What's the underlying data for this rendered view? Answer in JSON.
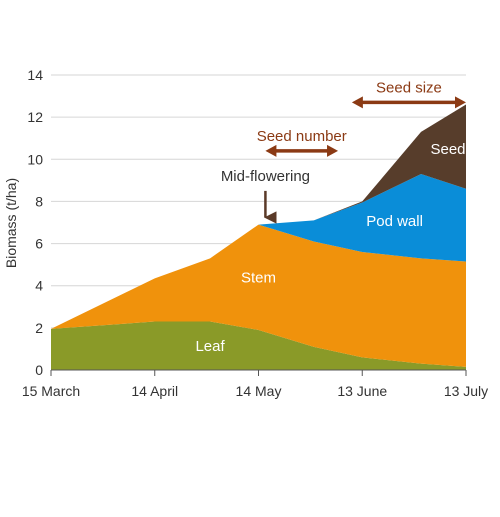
{
  "chart_data": {
    "type": "area",
    "stacked": true,
    "ylabel": "Biomass (t/ha)",
    "xlabel": "",
    "ylim": [
      0,
      14
    ],
    "yticks": [
      "0",
      "2",
      "4",
      "6",
      "8",
      "10",
      "12",
      "14"
    ],
    "xlim": [
      "2024-03-15",
      "2024-07-13"
    ],
    "x_ticks": [
      {
        "date": "2024-03-15",
        "label": "15 March"
      },
      {
        "date": "2024-04-14",
        "label": "14 April"
      },
      {
        "date": "2024-05-14",
        "label": "14 May"
      },
      {
        "date": "2024-06-13",
        "label": "13 June"
      },
      {
        "date": "2024-07-13",
        "label": "13 July"
      }
    ],
    "grid": "horizontal",
    "x": [
      "2024-03-15",
      "2024-04-14",
      "2024-04-30",
      "2024-05-14",
      "2024-05-30",
      "2024-06-13",
      "2024-06-30",
      "2024-07-13"
    ],
    "series": [
      {
        "name": "Leaf",
        "color": "#8a9a28",
        "values": [
          1.95,
          2.3,
          2.3,
          1.9,
          1.1,
          0.6,
          0.3,
          0.15
        ]
      },
      {
        "name": "Stem",
        "color": "#f0920c",
        "values": [
          0,
          2.05,
          3.0,
          5.0,
          5.0,
          5.0,
          5.0,
          5.0
        ]
      },
      {
        "name": "Pod wall",
        "color": "#0a8dd8",
        "values": [
          0,
          0,
          0,
          0,
          1.0,
          2.35,
          4.0,
          3.45
        ]
      },
      {
        "name": "Seed",
        "color": "#573d2b",
        "values": [
          0,
          0,
          0,
          0,
          0,
          0.05,
          2.0,
          4.0
        ]
      }
    ],
    "annotations": [
      {
        "text": "Mid-flowering",
        "type": "down-arrow",
        "date": "2024-05-16",
        "y_from": 8.5,
        "y_to": 7.0,
        "color": "#5a3a28"
      },
      {
        "text": "Seed number",
        "type": "range-arrow",
        "date_from": "2024-05-16",
        "date_to": "2024-06-06",
        "y": 10.4,
        "color": "#8b3a14"
      },
      {
        "text": "Seed size",
        "type": "range-arrow",
        "date_from": "2024-06-10",
        "date_to": "2024-07-13",
        "y": 12.7,
        "color": "#8b3a14"
      }
    ]
  }
}
